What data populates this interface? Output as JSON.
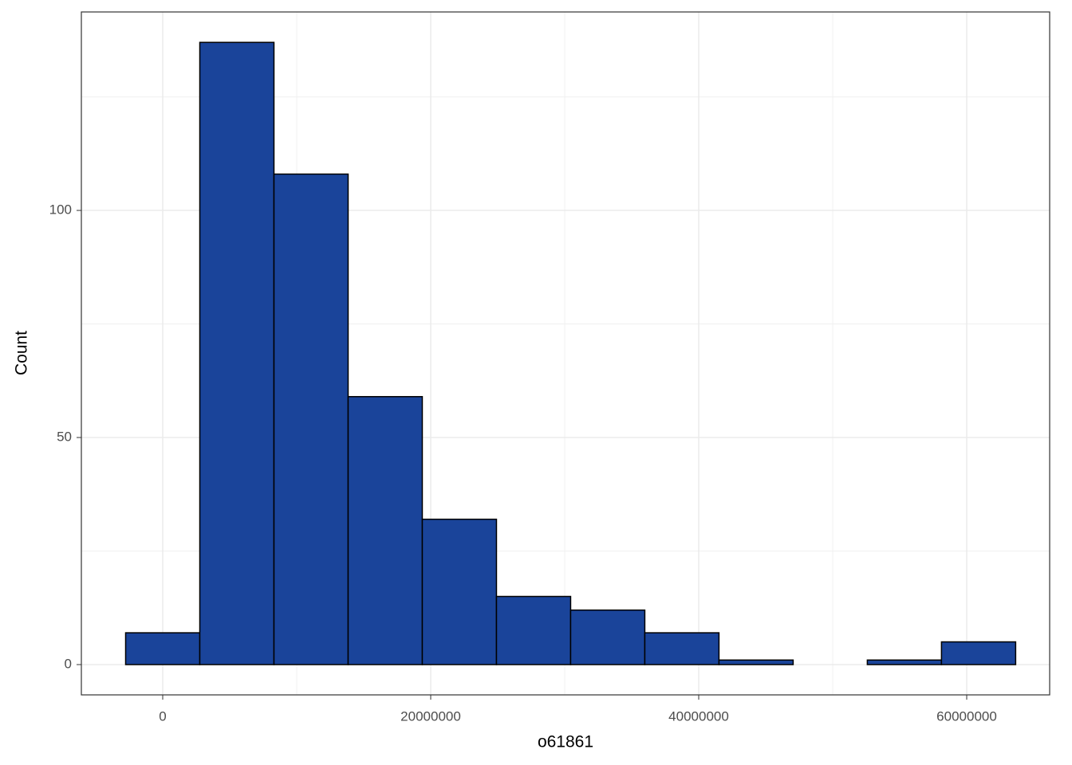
{
  "chart_data": {
    "type": "histogram",
    "x_label": "o61861",
    "y_label": "Count",
    "bins": [
      -2767500,
      2767500,
      8302500,
      13837500,
      19372500,
      24907500,
      30442500,
      35977500,
      41512500,
      47047500,
      52582500,
      58117500,
      63652500
    ],
    "counts": [
      7,
      137,
      108,
      59,
      32,
      15,
      12,
      7,
      1,
      0,
      1,
      5
    ],
    "color": "#1a449a",
    "edge_color": "#000000",
    "xlim": [
      -6071429,
      66190476
    ],
    "xticks": [
      0,
      20000000,
      40000000,
      60000000
    ],
    "minor_xticks": [
      10000000,
      30000000,
      50000000
    ],
    "ylim": [
      -6.67,
      143.7
    ],
    "yticks": [
      0,
      50,
      100
    ],
    "minor_yticks": [
      25,
      75,
      125
    ],
    "grid": true
  }
}
